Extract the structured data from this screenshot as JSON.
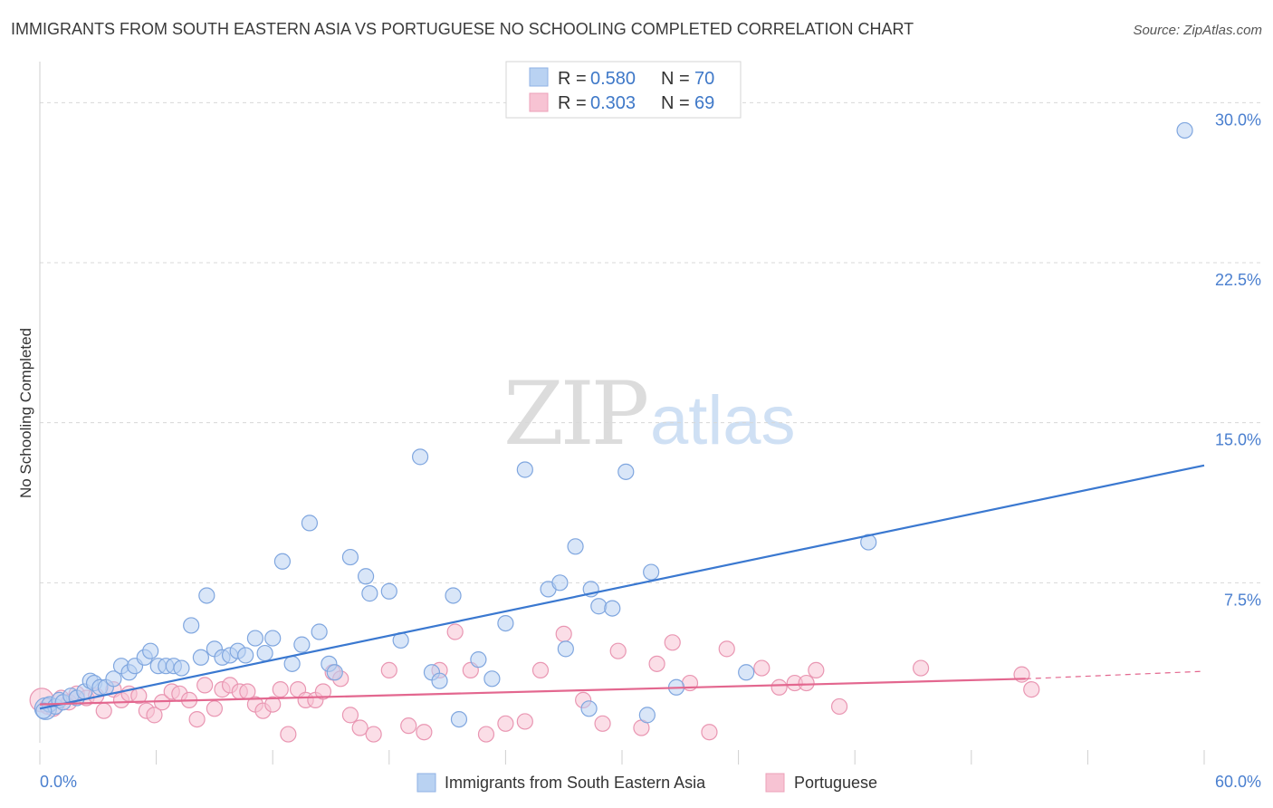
{
  "header": {
    "title": "IMMIGRANTS FROM SOUTH EASTERN ASIA VS PORTUGUESE NO SCHOOLING COMPLETED CORRELATION CHART",
    "source": "Source: ZipAtlas.com"
  },
  "watermark": {
    "part1": "ZIP",
    "part2": "atlas"
  },
  "legend": {
    "rows": [
      {
        "r_label": "R =",
        "r_value": "0.580",
        "n_label": "N =",
        "n_value": "70"
      },
      {
        "r_label": "R =",
        "r_value": "0.303",
        "n_label": "N =",
        "n_value": "69"
      }
    ]
  },
  "bottom_legend": {
    "items": [
      "Immigrants from South Eastern Asia",
      "Portuguese"
    ]
  },
  "colors": {
    "blue": "#3a78d0",
    "blue_fill": "#b9d2f2",
    "pink": "#e3678f",
    "pink_fill": "#f7c3d3",
    "grid": "#d8d8d8"
  },
  "chart_data": {
    "type": "scatter",
    "title": "IMMIGRANTS FROM SOUTH EASTERN ASIA VS PORTUGUESE NO SCHOOLING COMPLETED CORRELATION CHART",
    "xlabel": "",
    "ylabel": "No Schooling Completed",
    "xlim": [
      0,
      60
    ],
    "ylim": [
      0,
      31.5
    ],
    "x_tick_labels": [
      "0.0%",
      "60.0%"
    ],
    "y_ticks": [
      7.5,
      15.0,
      22.5,
      30.0
    ],
    "y_tick_labels": [
      "7.5%",
      "15.0%",
      "22.5%",
      "30.0%"
    ],
    "series": [
      {
        "name": "Immigrants from South Eastern Asia",
        "color": "#3a78d0",
        "R": 0.58,
        "N": 70,
        "trend": {
          "x": [
            0,
            60
          ],
          "y": [
            1.6,
            13.0
          ],
          "dashed_after": null
        },
        "points": [
          [
            0.3,
            1.6
          ],
          [
            0.5,
            1.8
          ],
          [
            0.8,
            1.7
          ],
          [
            1.0,
            2.0
          ],
          [
            1.2,
            1.9
          ],
          [
            1.6,
            2.2
          ],
          [
            1.9,
            2.1
          ],
          [
            2.3,
            2.4
          ],
          [
            2.6,
            2.9
          ],
          [
            2.8,
            2.8
          ],
          [
            3.1,
            2.6
          ],
          [
            3.4,
            2.6
          ],
          [
            3.8,
            3.0
          ],
          [
            4.2,
            3.6
          ],
          [
            4.6,
            3.3
          ],
          [
            4.9,
            3.6
          ],
          [
            5.4,
            4.0
          ],
          [
            5.7,
            4.3
          ],
          [
            6.1,
            3.6
          ],
          [
            6.5,
            3.6
          ],
          [
            6.9,
            3.6
          ],
          [
            7.3,
            3.5
          ],
          [
            7.8,
            5.5
          ],
          [
            8.3,
            4.0
          ],
          [
            8.6,
            6.9
          ],
          [
            9.0,
            4.4
          ],
          [
            9.4,
            4.0
          ],
          [
            9.8,
            4.1
          ],
          [
            10.2,
            4.3
          ],
          [
            10.6,
            4.1
          ],
          [
            11.1,
            4.9
          ],
          [
            11.6,
            4.2
          ],
          [
            12.0,
            4.9
          ],
          [
            12.5,
            8.5
          ],
          [
            13.0,
            3.7
          ],
          [
            13.5,
            4.6
          ],
          [
            13.9,
            10.3
          ],
          [
            14.4,
            5.2
          ],
          [
            14.9,
            3.7
          ],
          [
            15.2,
            3.3
          ],
          [
            16.0,
            8.7
          ],
          [
            16.8,
            7.8
          ],
          [
            17.0,
            7.0
          ],
          [
            18.0,
            7.1
          ],
          [
            18.6,
            4.8
          ],
          [
            19.6,
            13.4
          ],
          [
            20.2,
            3.3
          ],
          [
            20.6,
            2.9
          ],
          [
            21.3,
            6.9
          ],
          [
            21.6,
            1.1
          ],
          [
            22.6,
            3.9
          ],
          [
            23.3,
            3.0
          ],
          [
            24.0,
            5.6
          ],
          [
            25.0,
            12.8
          ],
          [
            26.2,
            7.2
          ],
          [
            26.8,
            7.5
          ],
          [
            27.1,
            4.4
          ],
          [
            27.6,
            9.2
          ],
          [
            28.4,
            7.2
          ],
          [
            28.8,
            6.4
          ],
          [
            29.5,
            6.3
          ],
          [
            30.2,
            12.7
          ],
          [
            31.5,
            8.0
          ],
          [
            32.8,
            2.6
          ],
          [
            36.4,
            3.3
          ],
          [
            42.7,
            9.4
          ],
          [
            59.0,
            28.7
          ],
          [
            0.2,
            1.5
          ],
          [
            31.3,
            1.3
          ],
          [
            28.3,
            1.6
          ]
        ]
      },
      {
        "name": "Portuguese",
        "color": "#e3678f",
        "R": 0.303,
        "N": 69,
        "trend": {
          "x": [
            0,
            50.8
          ],
          "y": [
            1.8,
            3.0
          ],
          "dashed_to": [
            60,
            3.35
          ]
        },
        "points": [
          [
            0.1,
            2.0
          ],
          [
            0.4,
            1.7
          ],
          [
            0.7,
            1.6
          ],
          [
            1.1,
            2.1
          ],
          [
            1.5,
            1.9
          ],
          [
            1.9,
            2.3
          ],
          [
            2.4,
            2.1
          ],
          [
            2.9,
            2.2
          ],
          [
            3.3,
            1.5
          ],
          [
            3.8,
            2.5
          ],
          [
            4.2,
            2.0
          ],
          [
            4.6,
            2.3
          ],
          [
            5.1,
            2.2
          ],
          [
            5.5,
            1.5
          ],
          [
            5.9,
            1.3
          ],
          [
            6.3,
            1.9
          ],
          [
            6.8,
            2.4
          ],
          [
            7.2,
            2.3
          ],
          [
            7.7,
            2.0
          ],
          [
            8.1,
            1.1
          ],
          [
            8.5,
            2.7
          ],
          [
            9.0,
            1.6
          ],
          [
            9.4,
            2.5
          ],
          [
            9.8,
            2.7
          ],
          [
            10.3,
            2.4
          ],
          [
            10.7,
            2.4
          ],
          [
            11.1,
            1.8
          ],
          [
            11.5,
            1.5
          ],
          [
            12.0,
            1.8
          ],
          [
            12.4,
            2.5
          ],
          [
            12.8,
            0.4
          ],
          [
            13.3,
            2.5
          ],
          [
            13.7,
            2.0
          ],
          [
            14.2,
            2.0
          ],
          [
            14.6,
            2.4
          ],
          [
            15.1,
            3.3
          ],
          [
            15.5,
            3.0
          ],
          [
            16.0,
            1.3
          ],
          [
            16.5,
            0.7
          ],
          [
            17.2,
            0.4
          ],
          [
            18.0,
            3.4
          ],
          [
            19.0,
            0.8
          ],
          [
            19.8,
            0.5
          ],
          [
            20.6,
            3.4
          ],
          [
            21.4,
            5.2
          ],
          [
            22.2,
            3.4
          ],
          [
            23.0,
            0.4
          ],
          [
            24.0,
            0.9
          ],
          [
            25.0,
            1.0
          ],
          [
            25.8,
            3.4
          ],
          [
            27.0,
            5.1
          ],
          [
            28.0,
            2.0
          ],
          [
            29.0,
            0.9
          ],
          [
            29.8,
            4.3
          ],
          [
            31.0,
            0.7
          ],
          [
            31.8,
            3.7
          ],
          [
            32.6,
            4.7
          ],
          [
            33.5,
            2.8
          ],
          [
            34.5,
            0.5
          ],
          [
            35.4,
            4.4
          ],
          [
            37.2,
            3.5
          ],
          [
            38.1,
            2.6
          ],
          [
            38.9,
            2.8
          ],
          [
            39.5,
            2.8
          ],
          [
            40.0,
            3.4
          ],
          [
            41.2,
            1.7
          ],
          [
            45.4,
            3.5
          ],
          [
            50.6,
            3.2
          ],
          [
            51.1,
            2.5
          ]
        ]
      }
    ]
  }
}
